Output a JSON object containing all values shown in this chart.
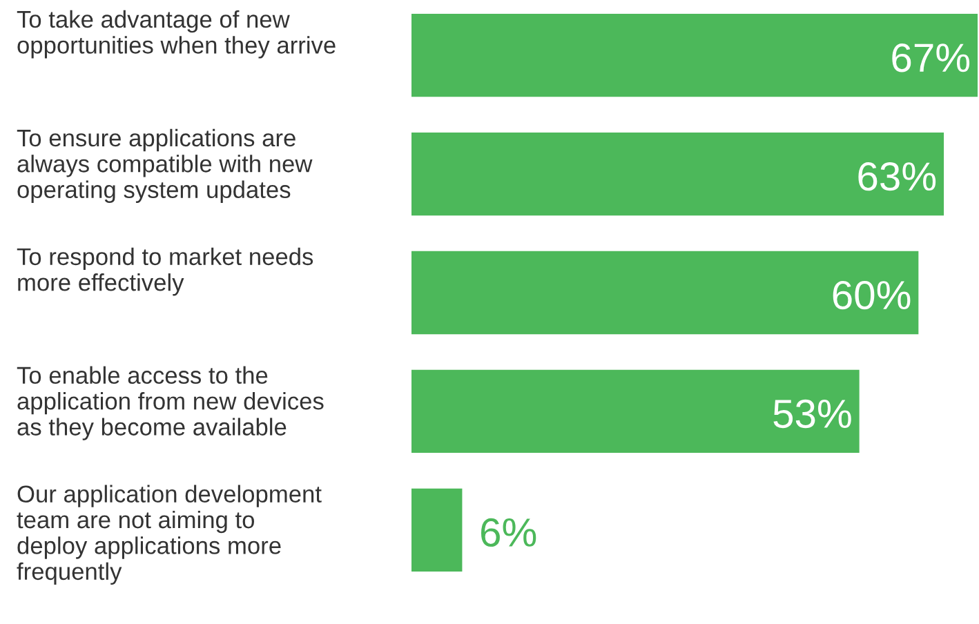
{
  "chart_data": {
    "type": "bar",
    "orientation": "horizontal",
    "categories": [
      "To take advantage of new\nopportunities when they arrive",
      "To ensure applications are\nalways compatible with new\noperating system updates",
      "To respond to market needs\nmore effectively",
      "To enable access to the\napplication from new devices\nas they become available",
      "Our application development\nteam are not aiming to\ndeploy applications more\nfrequently"
    ],
    "values": [
      67,
      63,
      60,
      53,
      6
    ],
    "value_labels": [
      "67%",
      "63%",
      "60%",
      "53%",
      "6%"
    ],
    "color": "#4cb85a"
  }
}
